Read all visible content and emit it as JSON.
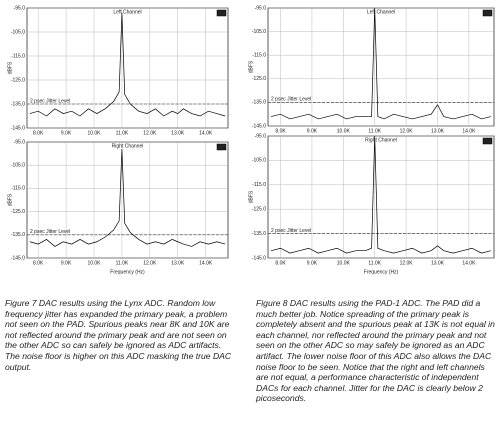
{
  "chart_data": [
    {
      "type": "line",
      "title": "Left Channel",
      "ylabel": "dBFS",
      "color": "#000000",
      "grid": true,
      "x": [
        7700,
        8000,
        8300,
        8600,
        8900,
        9200,
        9500,
        9800,
        10100,
        10400,
        10700,
        10900,
        11000,
        11100,
        11300,
        11600,
        11900,
        12200,
        12500,
        12800,
        13000,
        13200,
        13500,
        13800,
        14100,
        14400,
        14700
      ],
      "values": [
        -139,
        -138,
        -140,
        -137,
        -139,
        -138,
        -140,
        -137,
        -139,
        -137,
        -134,
        -130,
        -97,
        -131,
        -135,
        -138,
        -139,
        -137,
        -140,
        -138,
        -139,
        -137,
        -139,
        -140,
        -138,
        -139,
        -140
      ],
      "xlim": [
        7600,
        14800
      ],
      "xticks": [
        {
          "value": 8000,
          "label": "8.0K"
        },
        {
          "value": 9000,
          "label": "9.0K"
        },
        {
          "value": 10000,
          "label": "10.0K"
        },
        {
          "value": 11000,
          "label": "11.0K"
        },
        {
          "value": 12000,
          "label": "12.0K"
        },
        {
          "value": 13000,
          "label": "13.0K"
        },
        {
          "value": 14000,
          "label": "14.0K"
        }
      ],
      "ylim": [
        -145,
        -95
      ],
      "yticks": [
        {
          "value": -95,
          "label": "-95.0"
        },
        {
          "value": -105,
          "label": "-105.0"
        },
        {
          "value": -115,
          "label": "-115.0"
        },
        {
          "value": -125,
          "label": "-125.0"
        },
        {
          "value": -135,
          "label": "-135.0"
        },
        {
          "value": -145,
          "label": "-145.0"
        }
      ],
      "annotation": {
        "text": "2 psec Jitter Level",
        "value": -135
      }
    },
    {
      "type": "line",
      "title": "Right Channel",
      "ylabel": "dBFS",
      "xlabel": "Frequency (Hz)",
      "color": "#000000",
      "grid": true,
      "x": [
        7700,
        8000,
        8300,
        8600,
        8900,
        9200,
        9500,
        9800,
        10100,
        10400,
        10700,
        10900,
        11000,
        11100,
        11300,
        11600,
        11900,
        12200,
        12500,
        12800,
        13000,
        13200,
        13500,
        13800,
        14100,
        14400,
        14700
      ],
      "values": [
        -138,
        -139,
        -137,
        -140,
        -138,
        -139,
        -137,
        -139,
        -138,
        -136,
        -133,
        -129,
        -98,
        -130,
        -134,
        -137,
        -139,
        -138,
        -139,
        -137,
        -138,
        -139,
        -140,
        -138,
        -139,
        -138,
        -139
      ],
      "xlim": [
        7600,
        14800
      ],
      "xticks": [
        {
          "value": 8000,
          "label": "8.0K"
        },
        {
          "value": 9000,
          "label": "9.0K"
        },
        {
          "value": 10000,
          "label": "10.0K"
        },
        {
          "value": 11000,
          "label": "11.0K"
        },
        {
          "value": 12000,
          "label": "12.0K"
        },
        {
          "value": 13000,
          "label": "13.0K"
        },
        {
          "value": 14000,
          "label": "14.0K"
        }
      ],
      "ylim": [
        -145,
        -95
      ],
      "yticks": [
        {
          "value": -95,
          "label": "-95.0"
        },
        {
          "value": -105,
          "label": "-105.0"
        },
        {
          "value": -115,
          "label": "-115.0"
        },
        {
          "value": -125,
          "label": "-125.0"
        },
        {
          "value": -135,
          "label": "-135.0"
        },
        {
          "value": -145,
          "label": "-145.0"
        }
      ],
      "annotation": {
        "text": "2 psec Jitter Level",
        "value": -135
      }
    },
    {
      "type": "line",
      "title": "Left Channel",
      "ylabel": "dBFS",
      "color": "#000000",
      "grid": true,
      "x": [
        7700,
        8000,
        8300,
        8600,
        8900,
        9200,
        9500,
        9800,
        10100,
        10400,
        10700,
        10900,
        11000,
        11100,
        11300,
        11600,
        11900,
        12200,
        12500,
        12800,
        13000,
        13200,
        13500,
        13800,
        14100,
        14400,
        14700
      ],
      "values": [
        -141,
        -140,
        -142,
        -141,
        -140,
        -142,
        -141,
        -140,
        -142,
        -141,
        -141,
        -141,
        -95,
        -141,
        -142,
        -140,
        -141,
        -142,
        -141,
        -140,
        -136,
        -141,
        -142,
        -141,
        -140,
        -142,
        -141
      ],
      "xlim": [
        7600,
        14800
      ],
      "xticks": [
        {
          "value": 8000,
          "label": "8.0K"
        },
        {
          "value": 9000,
          "label": "9.0K"
        },
        {
          "value": 10000,
          "label": "10.0K"
        },
        {
          "value": 11000,
          "label": "11.0K"
        },
        {
          "value": 12000,
          "label": "12.0K"
        },
        {
          "value": 13000,
          "label": "13.0K"
        },
        {
          "value": 14000,
          "label": "14.0K"
        }
      ],
      "ylim": [
        -145,
        -95
      ],
      "yticks": [
        {
          "value": -95,
          "label": "-95.0"
        },
        {
          "value": -105,
          "label": "-105.0"
        },
        {
          "value": -115,
          "label": "-115.0"
        },
        {
          "value": -125,
          "label": "-125.0"
        },
        {
          "value": -135,
          "label": "-135.0"
        },
        {
          "value": -145,
          "label": "-145.0"
        }
      ],
      "annotation": {
        "text": "2 psec Jitter Level",
        "value": -135
      }
    },
    {
      "type": "line",
      "title": "Right Channel",
      "ylabel": "dBFS",
      "xlabel": "Frequency (Hz)",
      "color": "#000000",
      "grid": true,
      "x": [
        7700,
        8000,
        8300,
        8600,
        8900,
        9200,
        9500,
        9800,
        10100,
        10400,
        10700,
        10900,
        11000,
        11100,
        11300,
        11600,
        11900,
        12200,
        12500,
        12800,
        13000,
        13200,
        13500,
        13800,
        14100,
        14400,
        14700
      ],
      "values": [
        -142,
        -141,
        -143,
        -142,
        -141,
        -143,
        -142,
        -141,
        -143,
        -142,
        -142,
        -141,
        -95,
        -141,
        -142,
        -143,
        -142,
        -141,
        -143,
        -142,
        -140,
        -142,
        -143,
        -142,
        -141,
        -143,
        -142
      ],
      "xlim": [
        7600,
        14800
      ],
      "xticks": [
        {
          "value": 8000,
          "label": "8.0K"
        },
        {
          "value": 9000,
          "label": "9.0K"
        },
        {
          "value": 10000,
          "label": "10.0K"
        },
        {
          "value": 11000,
          "label": "11.0K"
        },
        {
          "value": 12000,
          "label": "12.0K"
        },
        {
          "value": 13000,
          "label": "13.0K"
        },
        {
          "value": 14000,
          "label": "14.0K"
        }
      ],
      "ylim": [
        -145,
        -95
      ],
      "yticks": [
        {
          "value": -95,
          "label": "-95.0"
        },
        {
          "value": -105,
          "label": "-105.0"
        },
        {
          "value": -115,
          "label": "-115.0"
        },
        {
          "value": -125,
          "label": "-125.0"
        },
        {
          "value": -135,
          "label": "-135.0"
        },
        {
          "value": -145,
          "label": "-145.0"
        }
      ],
      "annotation": {
        "text": "2 psec Jitter Level",
        "value": -135
      }
    }
  ],
  "captions": [
    "Figure 7  DAC results using the Lynx ADC.  Random low frequency jitter has expanded the primary peak, a problem not seen on the PAD.  Spurious peaks near 8K and 10K are not reflected around the primary peak and are not seen on the other ADC so can safely be ignored as ADC artifacts.  The noise floor is higher on this ADC masking the true DAC output.",
    "Figure 8 DAC results using the PAD-1 ADC.  The PAD did a much better job.  Notice spreading of the primary peak is completely absent and the spurious peak at 13K is not equal in each channel, nor reflected around the primary peak and not seen on the other ADC so may safely be ignored as an ADC artifact.  The lower noise floor of this ADC also allows the DAC noise floor to be seen.  Notice that the right and left channels are not equal, a performance characteristic of independent DACs for each channel.  Jitter for the DAC is clearly below 2 picoseconds."
  ]
}
